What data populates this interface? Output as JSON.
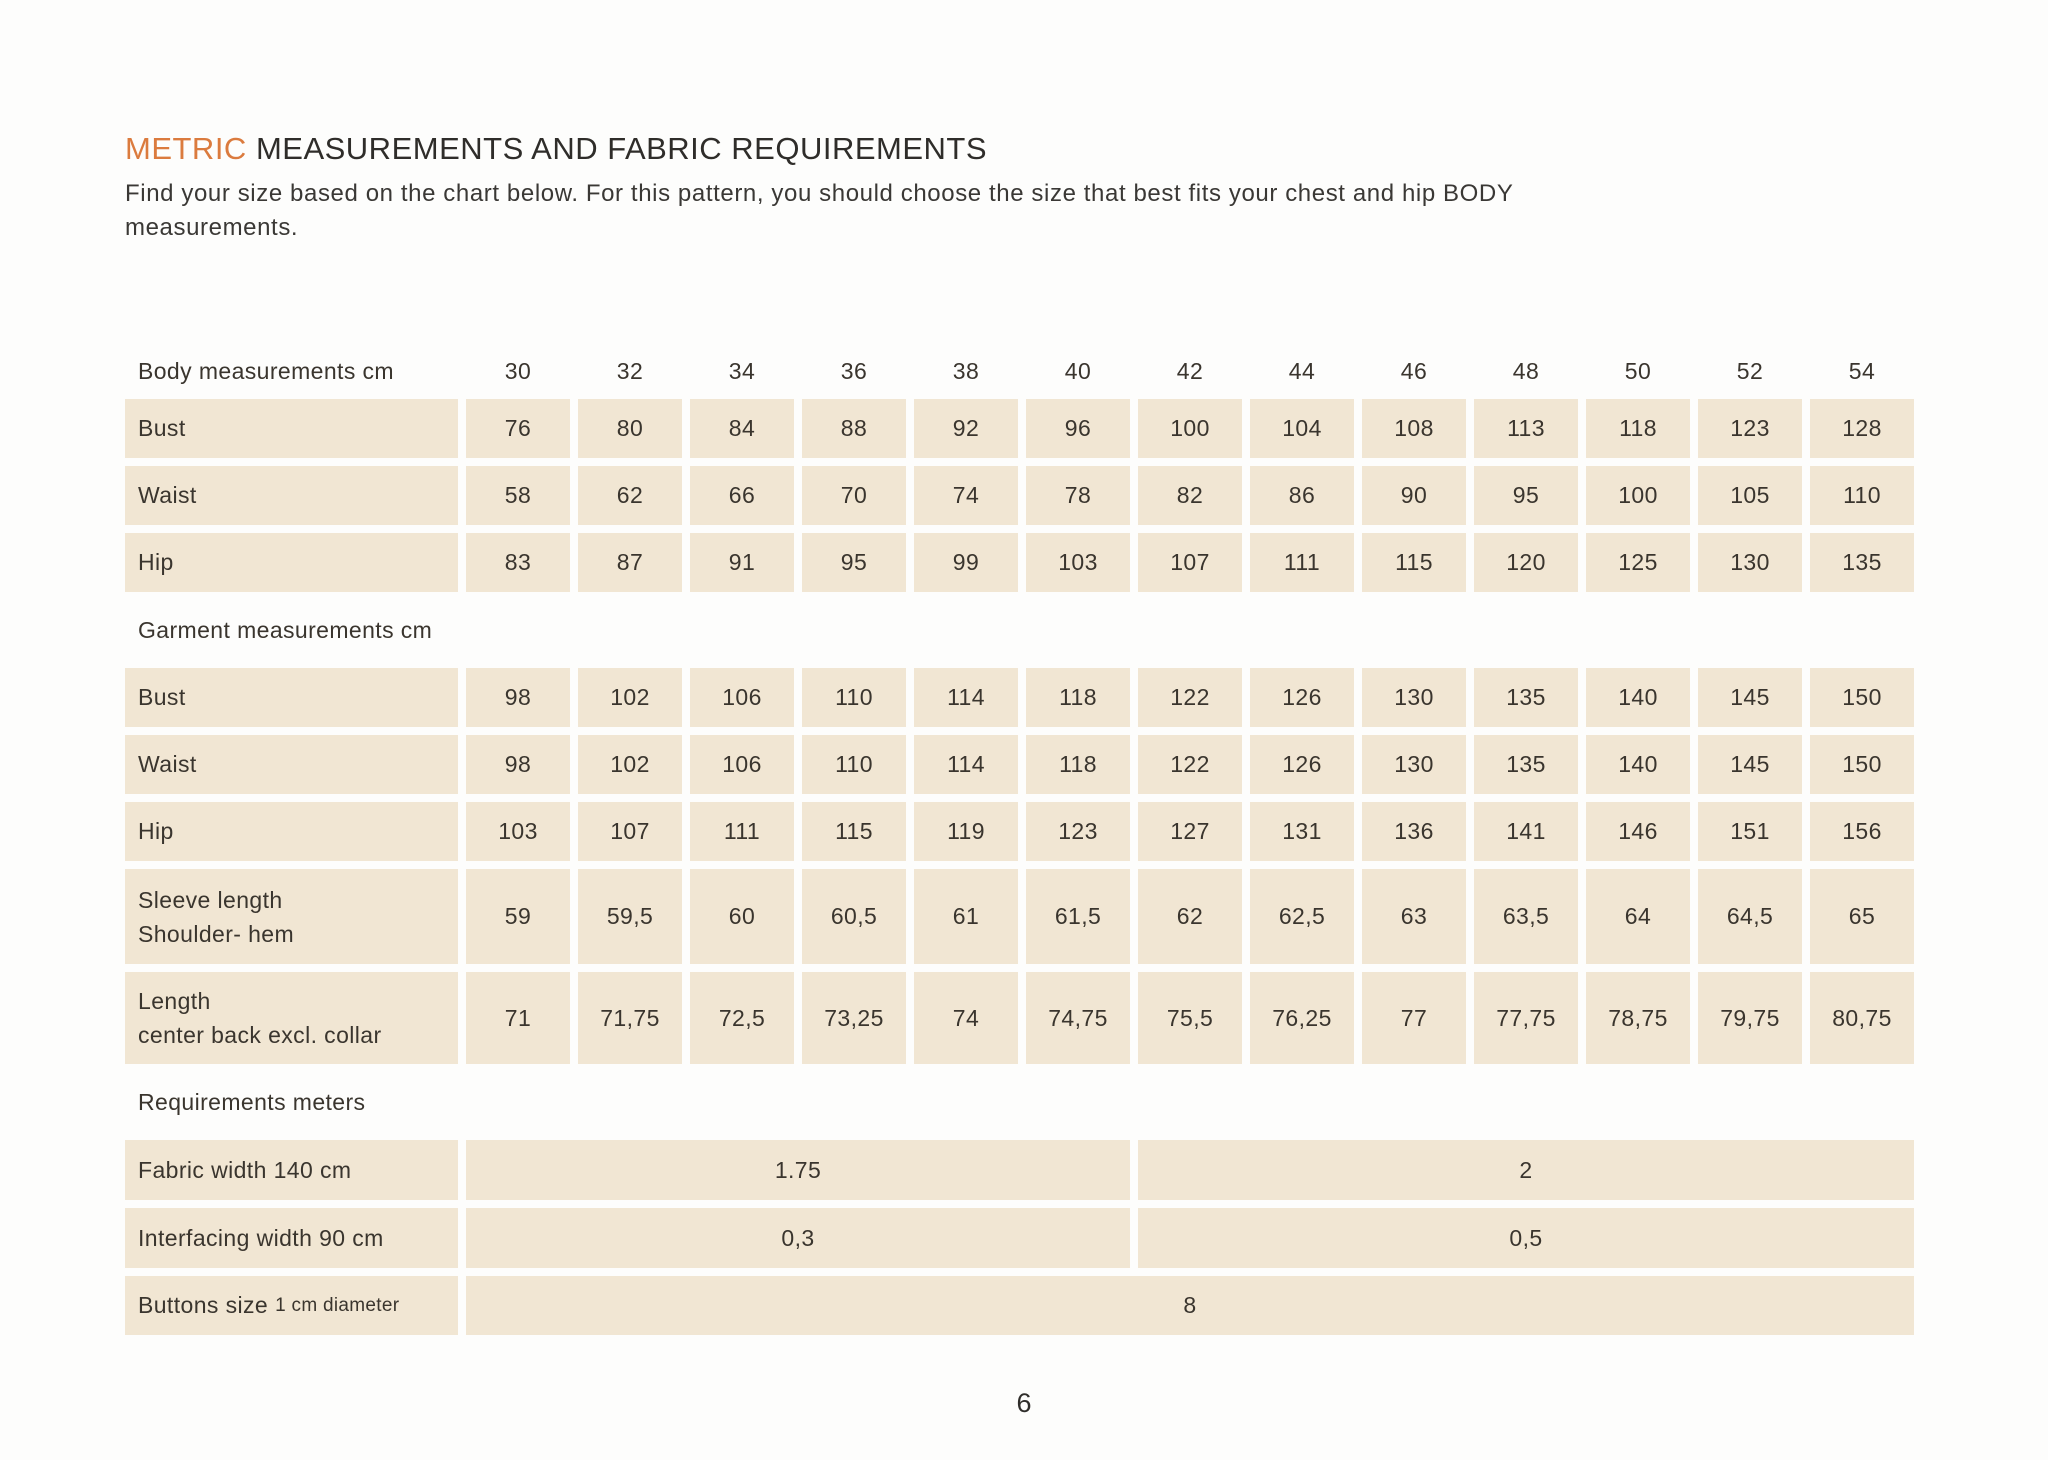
{
  "title": {
    "highlight": "METRIC",
    "rest": " MEASUREMENTS AND FABRIC REQUIREMENTS"
  },
  "subtitle_line1": "Find your size based on the chart below. For this pattern, you should choose the size that best fits your chest and hip BODY",
  "subtitle_line2": "measurements.",
  "colors": {
    "accent": "#db7b3e",
    "cell_bg": "#f1e6d3"
  },
  "table": {
    "type": "table",
    "sizes": [
      "30",
      "32",
      "34",
      "36",
      "38",
      "40",
      "42",
      "44",
      "46",
      "48",
      "50",
      "52",
      "54"
    ],
    "body_measurements": {
      "label": "Body measurements cm",
      "rows": [
        {
          "label": "Bust",
          "values": [
            "76",
            "80",
            "84",
            "88",
            "92",
            "96",
            "100",
            "104",
            "108",
            "113",
            "118",
            "123",
            "128"
          ]
        },
        {
          "label": "Waist",
          "values": [
            "58",
            "62",
            "66",
            "70",
            "74",
            "78",
            "82",
            "86",
            "90",
            "95",
            "100",
            "105",
            "110"
          ]
        },
        {
          "label": "Hip",
          "values": [
            "83",
            "87",
            "91",
            "95",
            "99",
            "103",
            "107",
            "111",
            "115",
            "120",
            "125",
            "130",
            "135"
          ]
        }
      ]
    },
    "garment_measurements": {
      "label": "Garment measurements cm",
      "rows": [
        {
          "label": "Bust",
          "values": [
            "98",
            "102",
            "106",
            "110",
            "114",
            "118",
            "122",
            "126",
            "130",
            "135",
            "140",
            "145",
            "150"
          ]
        },
        {
          "label": "Waist",
          "values": [
            "98",
            "102",
            "106",
            "110",
            "114",
            "118",
            "122",
            "126",
            "130",
            "135",
            "140",
            "145",
            "150"
          ]
        },
        {
          "label": "Hip",
          "values": [
            "103",
            "107",
            "111",
            "115",
            "119",
            "123",
            "127",
            "131",
            "136",
            "141",
            "146",
            "151",
            "156"
          ]
        },
        {
          "label": "Sleeve length",
          "label2": "Shoulder- hem",
          "values": [
            "59",
            "59,5",
            "60",
            "60,5",
            "61",
            "61,5",
            "62",
            "62,5",
            "63",
            "63,5",
            "64",
            "64,5",
            "65"
          ]
        },
        {
          "label": "Length",
          "label2": "center back excl. collar",
          "values": [
            "71",
            "71,75",
            "72,5",
            "73,25",
            "74",
            "74,75",
            "75,5",
            "76,25",
            "77",
            "77,75",
            "78,75",
            "79,75",
            "80,75"
          ]
        }
      ]
    },
    "requirements": {
      "label": "Requirements meters",
      "rows": [
        {
          "label": "Fabric width 140 cm",
          "left_value": "1.75",
          "right_value": "2"
        },
        {
          "label": "Interfacing width 90 cm",
          "left_value": "0,3",
          "right_value": "0,5"
        }
      ],
      "buttons_row": {
        "label": "Buttons size",
        "sublabel": "1 cm diameter",
        "value": "8"
      }
    }
  },
  "page": {
    "number": "6"
  }
}
